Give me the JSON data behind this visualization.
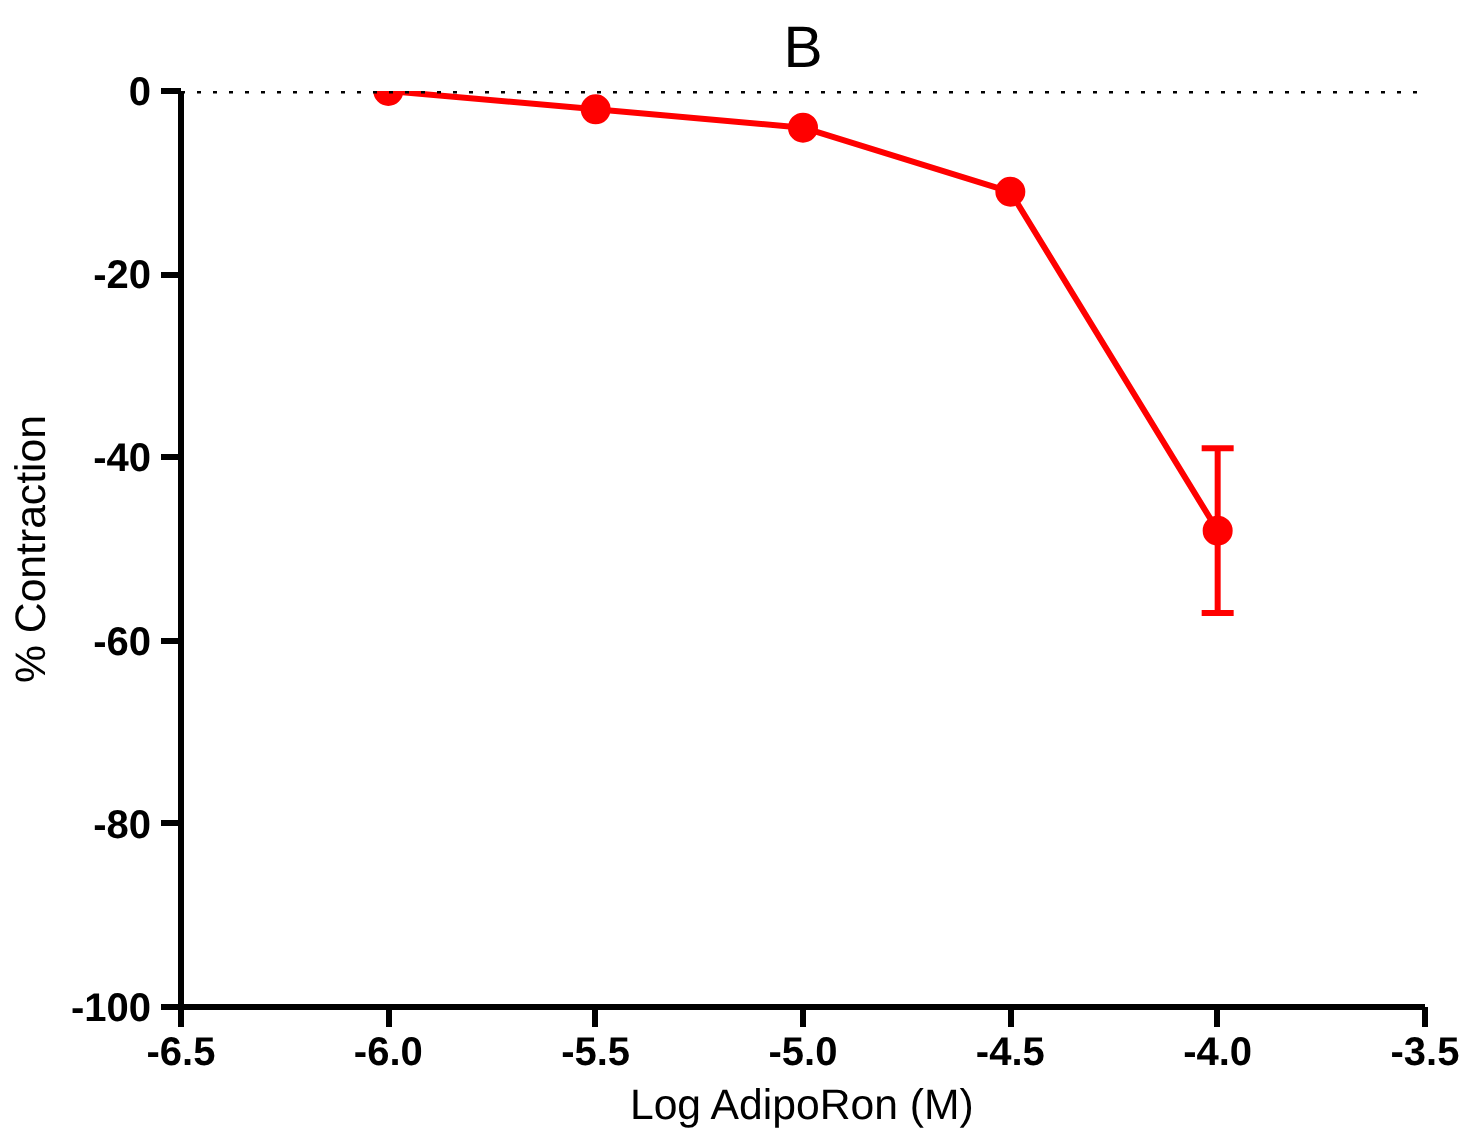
{
  "chart_data": {
    "type": "line",
    "title": "B",
    "xlabel": "Log AdipoRon (M)",
    "ylabel": "% Contraction",
    "x": [
      -6.0,
      -5.5,
      -5.0,
      -4.5,
      -4.0
    ],
    "series": [
      {
        "color": "#ff0000",
        "values": [
          0,
          -2,
          -4,
          -11,
          -48
        ],
        "errors": [
          null,
          null,
          null,
          null,
          [
            -57,
            -39
          ]
        ]
      }
    ],
    "xlim": [
      -6.5,
      -3.5
    ],
    "xticks": [
      {
        "value": -6.5,
        "label": "-6.5"
      },
      {
        "value": -6.0,
        "label": "-6.0"
      },
      {
        "value": -5.5,
        "label": "-5.5"
      },
      {
        "value": -5.0,
        "label": "-5.0"
      },
      {
        "value": -4.5,
        "label": "-4.5"
      },
      {
        "value": -4.0,
        "label": "-4.0"
      },
      {
        "value": -3.5,
        "label": "-3.5"
      }
    ],
    "ylim": [
      -100,
      0
    ],
    "yticks": [
      0,
      -20,
      -40,
      -60,
      -80,
      -100
    ],
    "ref_lines": [
      {
        "axis": "y",
        "value": 0,
        "color": "#000000",
        "line_style": "dotted"
      }
    ],
    "marker": "circle",
    "grid": false
  }
}
